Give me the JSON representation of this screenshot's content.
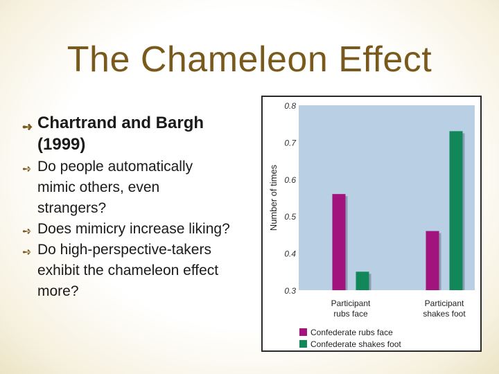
{
  "slide": {
    "title": "The Chameleon Effect",
    "bullets": [
      {
        "level": 1,
        "text": "Chartrand and Bargh (1999)"
      },
      {
        "level": 2,
        "text": "Do people automatically mimic others, even strangers?"
      },
      {
        "level": 2,
        "text": "Does mimicry increase liking?"
      },
      {
        "level": 2,
        "text": "Do high-perspective-takers exhibit the chameleon effect more?"
      }
    ],
    "bullet_icon": "arrow-bullet-icon"
  },
  "chart_data": {
    "type": "bar",
    "title": "",
    "xlabel": "",
    "ylabel": "Number of times",
    "categories": [
      "Participant rubs face",
      "Participant shakes foot"
    ],
    "category_lines": [
      [
        "Participant",
        "rubs face"
      ],
      [
        "Participant",
        "shakes foot"
      ]
    ],
    "series": [
      {
        "name": "Confederate rubs face",
        "values": [
          0.56,
          0.46
        ],
        "color": "#a3137d"
      },
      {
        "name": "Confederate shakes foot",
        "values": [
          0.35,
          0.73
        ],
        "color": "#12875a"
      }
    ],
    "ylim": [
      0.3,
      0.8
    ],
    "yticks": [
      "0.3",
      "0.4",
      "0.5",
      "0.6",
      "0.7",
      "0.8"
    ],
    "grid": false,
    "legend_position": "bottom",
    "plot_background": "#b9cfe4"
  }
}
